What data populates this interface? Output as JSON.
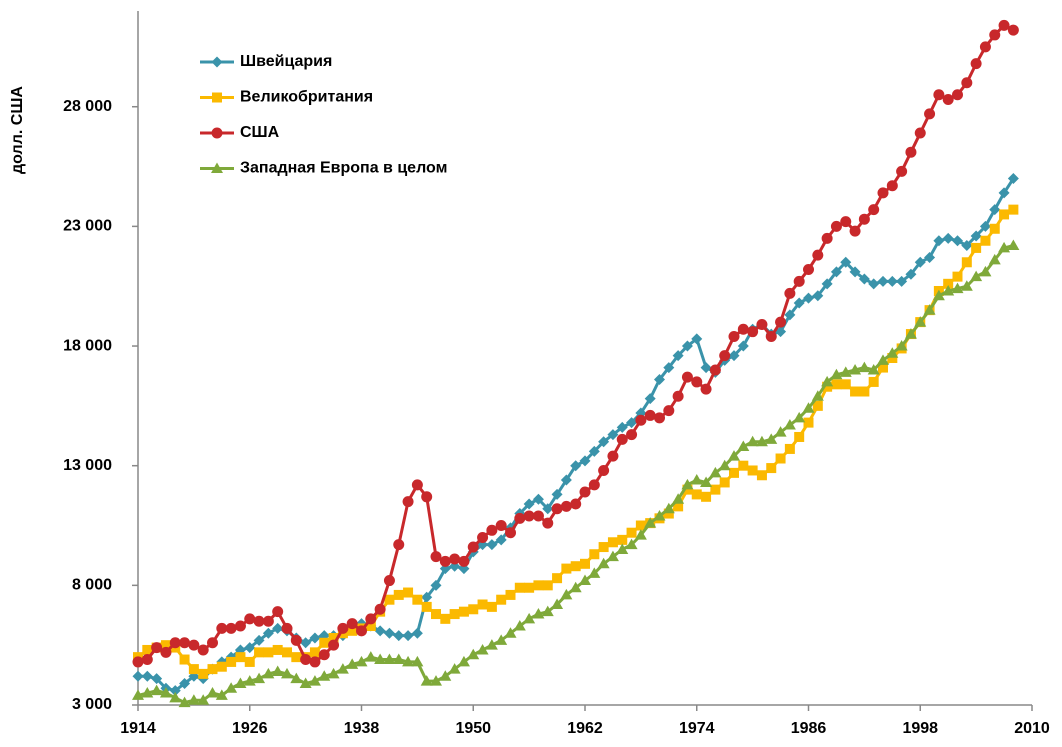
{
  "chart_data": {
    "type": "line",
    "y_label": "долл. США",
    "legend": "upper left",
    "grid": false,
    "xlim": [
      1914,
      2010
    ],
    "xticks": [
      1914,
      1926,
      1938,
      1950,
      1962,
      1974,
      1986,
      1998,
      2010
    ],
    "ylim": [
      3000,
      32000
    ],
    "yticks": [
      {
        "value": 3000,
        "label": "3 000"
      },
      {
        "value": 8000,
        "label": "8 000"
      },
      {
        "value": 13000,
        "label": "13 000"
      },
      {
        "value": 18000,
        "label": "18 000"
      },
      {
        "value": 23000,
        "label": "23 000"
      },
      {
        "value": 28000,
        "label": "28 000"
      }
    ],
    "x": [
      1914,
      1915,
      1916,
      1917,
      1918,
      1919,
      1920,
      1921,
      1922,
      1923,
      1924,
      1925,
      1926,
      1927,
      1928,
      1929,
      1930,
      1931,
      1932,
      1933,
      1934,
      1935,
      1936,
      1937,
      1938,
      1939,
      1940,
      1941,
      1942,
      1943,
      1944,
      1945,
      1946,
      1947,
      1948,
      1949,
      1950,
      1951,
      1952,
      1953,
      1954,
      1955,
      1956,
      1957,
      1958,
      1959,
      1960,
      1961,
      1962,
      1963,
      1964,
      1965,
      1966,
      1967,
      1968,
      1969,
      1970,
      1971,
      1972,
      1973,
      1974,
      1975,
      1976,
      1977,
      1978,
      1979,
      1980,
      1981,
      1982,
      1983,
      1984,
      1985,
      1986,
      1987,
      1988,
      1989,
      1990,
      1991,
      1992,
      1993,
      1994,
      1995,
      1996,
      1997,
      1998,
      1999,
      2000,
      2001,
      2002,
      2003,
      2004,
      2005,
      2006,
      2007,
      2008
    ],
    "series": [
      {
        "name": "Швейцария",
        "color": "#3a93aa",
        "marker": "diamond",
        "values": [
          4200,
          4200,
          4100,
          3700,
          3600,
          3900,
          4200,
          4100,
          4500,
          4800,
          5000,
          5300,
          5400,
          5700,
          6000,
          6200,
          6100,
          5800,
          5600,
          5800,
          5900,
          5900,
          5900,
          6200,
          6400,
          6300,
          6100,
          6000,
          5900,
          5900,
          6000,
          7500,
          8000,
          8700,
          8800,
          8700,
          9400,
          9700,
          9700,
          9900,
          10400,
          11000,
          11400,
          11600,
          11200,
          11800,
          12400,
          13000,
          13200,
          13600,
          14000,
          14300,
          14600,
          14800,
          15200,
          15800,
          16600,
          17100,
          17600,
          18000,
          18300,
          17100,
          16900,
          17400,
          17600,
          18000,
          18700,
          18900,
          18500,
          18600,
          19300,
          19800,
          20000,
          20100,
          20600,
          21100,
          21500,
          21100,
          20800,
          20600,
          20700,
          20700,
          20700,
          21000,
          21500,
          21700,
          22400,
          22500,
          22400,
          22200,
          22600,
          23000,
          23700,
          24400,
          25000
        ]
      },
      {
        "name": "Великобритания",
        "color": "#fbb900",
        "marker": "square",
        "values": [
          5000,
          5300,
          5400,
          5500,
          5400,
          4900,
          4500,
          4300,
          4500,
          4600,
          4800,
          5000,
          4800,
          5200,
          5200,
          5300,
          5200,
          5000,
          5000,
          5200,
          5600,
          5800,
          6000,
          6100,
          6200,
          6300,
          6900,
          7400,
          7600,
          7700,
          7400,
          7100,
          6800,
          6600,
          6800,
          6900,
          7000,
          7200,
          7100,
          7400,
          7600,
          7900,
          7900,
          8000,
          8000,
          8300,
          8700,
          8800,
          8900,
          9300,
          9600,
          9800,
          9900,
          10200,
          10500,
          10600,
          10800,
          11000,
          11300,
          12000,
          11800,
          11700,
          12000,
          12300,
          12700,
          13000,
          12800,
          12600,
          12900,
          13300,
          13700,
          14200,
          14800,
          15500,
          16300,
          16400,
          16400,
          16100,
          16100,
          16500,
          17100,
          17500,
          17900,
          18500,
          19000,
          19500,
          20300,
          20600,
          20900,
          21500,
          22100,
          22400,
          22900,
          23500,
          23700
        ]
      },
      {
        "name": "США",
        "color": "#c8282b",
        "marker": "circle",
        "values": [
          4800,
          4900,
          5400,
          5200,
          5600,
          5600,
          5500,
          5300,
          5600,
          6200,
          6200,
          6300,
          6600,
          6500,
          6500,
          6900,
          6200,
          5700,
          4900,
          4800,
          5100,
          5500,
          6200,
          6400,
          6100,
          6600,
          7000,
          8200,
          9700,
          11500,
          12200,
          11700,
          9200,
          9000,
          9100,
          9000,
          9600,
          10000,
          10300,
          10500,
          10200,
          10800,
          10900,
          10900,
          10600,
          11200,
          11300,
          11400,
          11900,
          12200,
          12800,
          13400,
          14100,
          14300,
          14900,
          15100,
          15000,
          15300,
          15900,
          16700,
          16500,
          16200,
          17000,
          17600,
          18400,
          18700,
          18600,
          18900,
          18400,
          19000,
          20200,
          20700,
          21200,
          21800,
          22500,
          23000,
          23200,
          22800,
          23300,
          23700,
          24400,
          24700,
          25300,
          26100,
          26900,
          27700,
          28500,
          28300,
          28500,
          29000,
          29800,
          30500,
          31000,
          31400,
          31200
        ]
      },
      {
        "name": "Западная Европа в целом",
        "color": "#7fa93a",
        "marker": "triangle",
        "values": [
          3400,
          3500,
          3600,
          3500,
          3300,
          3100,
          3200,
          3200,
          3500,
          3400,
          3700,
          3900,
          4000,
          4100,
          4300,
          4400,
          4300,
          4100,
          3900,
          4000,
          4200,
          4300,
          4500,
          4700,
          4800,
          5000,
          4900,
          4900,
          4900,
          4800,
          4800,
          4000,
          4000,
          4200,
          4500,
          4800,
          5100,
          5300,
          5500,
          5700,
          6000,
          6300,
          6600,
          6800,
          6900,
          7200,
          7600,
          7900,
          8200,
          8500,
          8900,
          9200,
          9500,
          9700,
          10100,
          10600,
          10900,
          11200,
          11600,
          12200,
          12400,
          12300,
          12700,
          13000,
          13400,
          13800,
          14000,
          14000,
          14100,
          14400,
          14700,
          15000,
          15400,
          15900,
          16500,
          16800,
          16900,
          17000,
          17100,
          17000,
          17400,
          17700,
          18000,
          18500,
          19000,
          19500,
          20100,
          20300,
          20400,
          20500,
          20900,
          21100,
          21600,
          22100,
          22200
        ]
      }
    ]
  }
}
